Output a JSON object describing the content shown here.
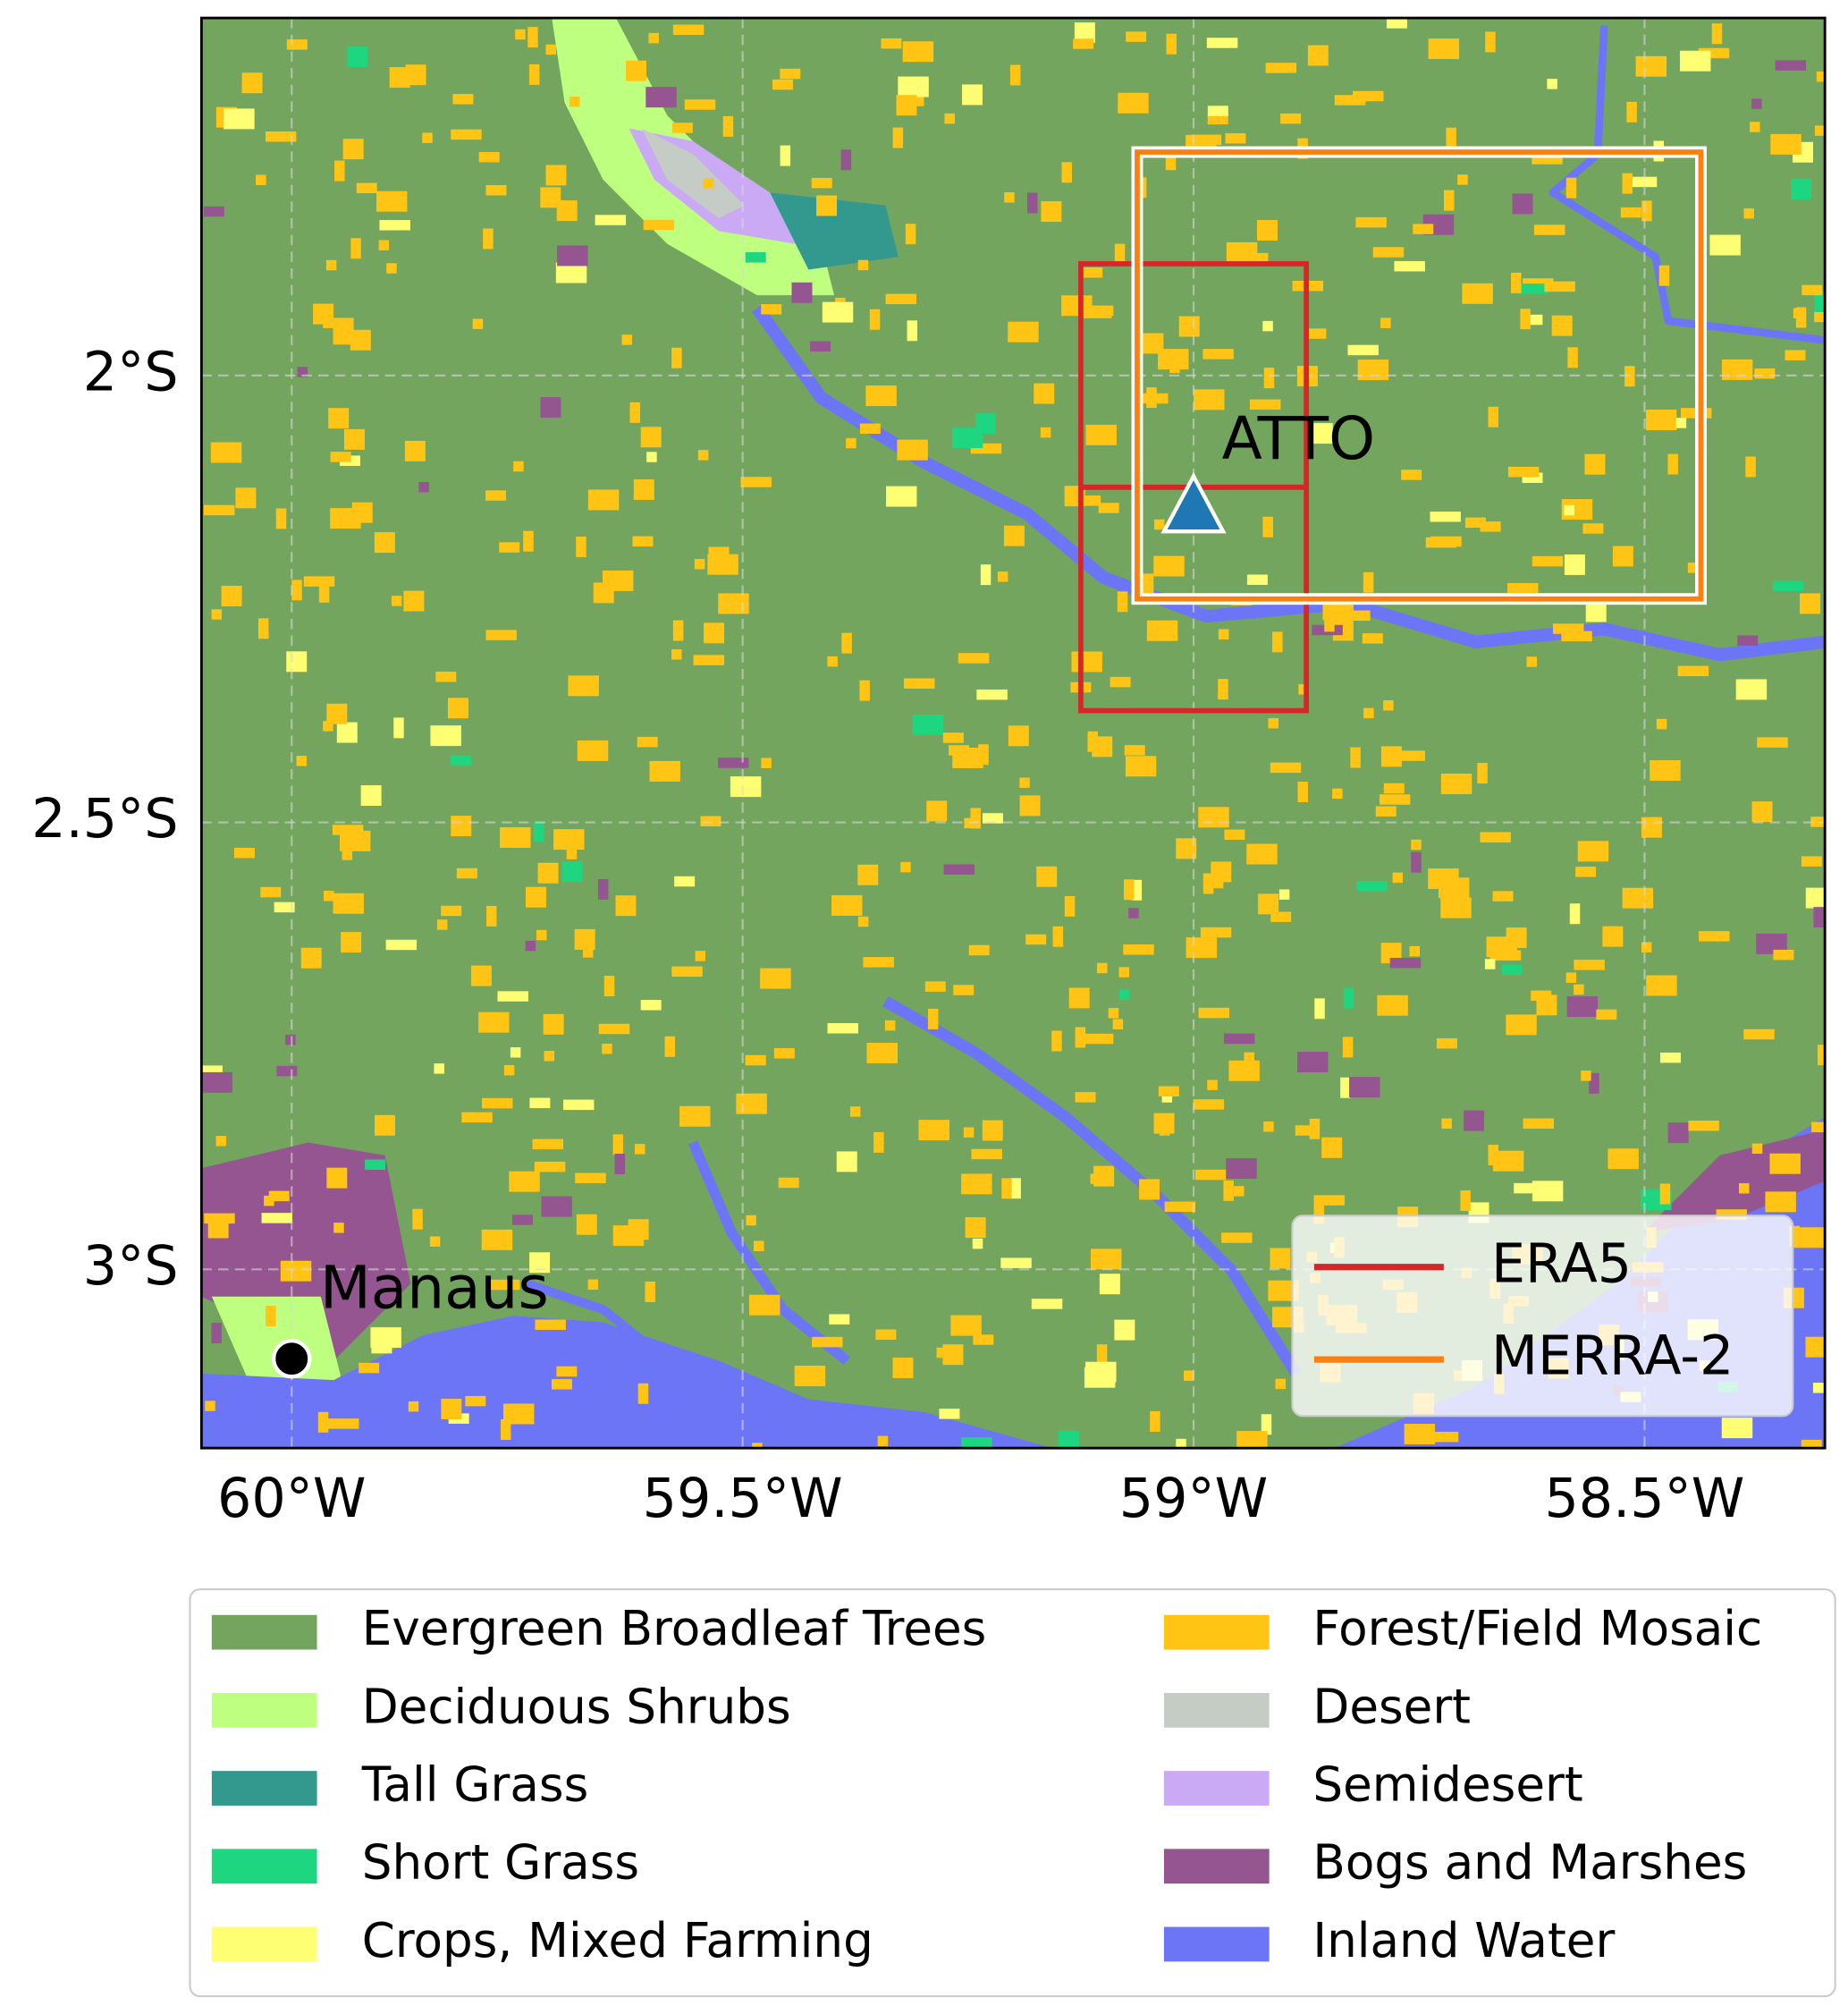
{
  "map": {
    "xlim": [
      -60.1,
      -58.3
    ],
    "ylim": [
      -3.2,
      -1.6
    ],
    "xticks": [
      {
        "value": -60,
        "label": "60°W"
      },
      {
        "value": -59.5,
        "label": "59.5°W"
      },
      {
        "value": -59,
        "label": "59°W"
      },
      {
        "value": -58.5,
        "label": "58.5°W"
      }
    ],
    "yticks": [
      {
        "value": -2,
        "label": "2°S"
      },
      {
        "value": -2.5,
        "label": "2.5°S"
      },
      {
        "value": -3,
        "label": "3°S"
      }
    ],
    "grid": true,
    "boxes": [
      {
        "name": "ERA5",
        "color": "#d62728",
        "cells": [
          {
            "lon": [
              -59.125,
              -58.875
            ],
            "lat": [
              -1.875,
              -2.125
            ]
          },
          {
            "lon": [
              -59.125,
              -58.875
            ],
            "lat": [
              -2.125,
              -2.375
            ]
          }
        ]
      },
      {
        "name": "MERRA-2",
        "color": "#ff7f0e",
        "outline": "#ffffff",
        "cells": [
          {
            "lon": [
              -59.0625,
              -58.4375
            ],
            "lat": [
              -1.75,
              -2.25
            ]
          }
        ]
      }
    ],
    "sites": [
      {
        "name": "ATTO",
        "lon": -59.0,
        "lat": -2.15,
        "marker": "triangle",
        "color": "#1f77b4"
      },
      {
        "name": "Manaus",
        "lon": -60.0,
        "lat": -3.1,
        "marker": "circle",
        "color": "#000000"
      }
    ],
    "land_cover": [
      {
        "name": "Evergreen Broadleaf Trees",
        "color": "#73a55e"
      },
      {
        "name": "Deciduous Shrubs",
        "color": "#bfff80"
      },
      {
        "name": "Tall Grass",
        "color": "#33998f"
      },
      {
        "name": "Short Grass",
        "color": "#1fd680"
      },
      {
        "name": "Crops, Mixed Farming",
        "color": "#ffff73"
      },
      {
        "name": "Forest/Field Mosaic",
        "color": "#ffc414"
      },
      {
        "name": "Desert",
        "color": "#c5cbc5"
      },
      {
        "name": "Semidesert",
        "color": "#cbaaf5"
      },
      {
        "name": "Bogs and Marshes",
        "color": "#955590"
      },
      {
        "name": "Inland Water",
        "color": "#6b75f5"
      }
    ]
  }
}
